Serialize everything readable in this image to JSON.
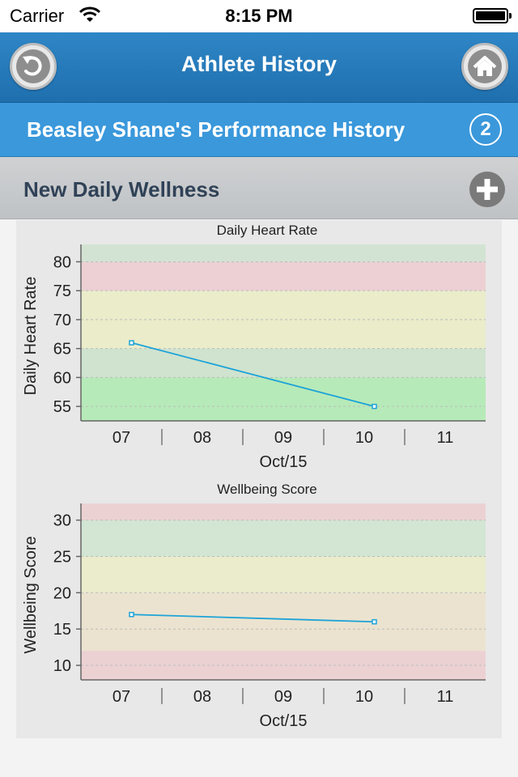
{
  "status_bar": {
    "carrier": "Carrier",
    "time": "8:15 PM"
  },
  "nav": {
    "title": "Athlete History",
    "back_icon": "back-arrow-icon",
    "home_icon": "home-icon"
  },
  "subheader": {
    "title": "Beasley Shane's Performance History",
    "badge": "2"
  },
  "section": {
    "title": "New Daily Wellness",
    "add_icon": "plus-circle-icon"
  },
  "chart_data": [
    {
      "type": "line",
      "title": "Daily Heart Rate",
      "ylabel": "Daily Heart Rate",
      "xlabel": "Oct/15",
      "x_ticks": [
        "07",
        "08",
        "09",
        "10",
        "11"
      ],
      "y_ticks": [
        55,
        60,
        65,
        70,
        75,
        80
      ],
      "ylim": [
        52.5,
        83
      ],
      "grid": true,
      "bands": [
        {
          "from": 52.5,
          "to": 60,
          "color": "#b7eab9"
        },
        {
          "from": 60,
          "to": 65,
          "color": "#cfe3cf"
        },
        {
          "from": 65,
          "to": 75,
          "color": "#eaecca"
        },
        {
          "from": 75,
          "to": 80,
          "color": "#ecd0d3"
        },
        {
          "from": 80,
          "to": 83,
          "color": "#d3e3d3"
        }
      ],
      "series": [
        {
          "color": "#1ca3d8",
          "points": [
            {
              "x": "2015-10-07",
              "y": 66
            },
            {
              "x": "2015-10-10",
              "y": 55
            }
          ]
        }
      ]
    },
    {
      "type": "line",
      "title": "Wellbeing Score",
      "ylabel": "Wellbeing Score",
      "xlabel": "Oct/15",
      "x_ticks": [
        "07",
        "08",
        "09",
        "10",
        "11"
      ],
      "y_ticks": [
        10,
        15,
        20,
        25,
        30
      ],
      "ylim": [
        8,
        32.3
      ],
      "grid": true,
      "bands": [
        {
          "from": 8,
          "to": 12,
          "color": "#ecd1d3"
        },
        {
          "from": 12,
          "to": 20,
          "color": "#ebe3cf"
        },
        {
          "from": 20,
          "to": 25,
          "color": "#eaeccb"
        },
        {
          "from": 25,
          "to": 30,
          "color": "#d3e5d3"
        },
        {
          "from": 30,
          "to": 32.3,
          "color": "#ecd1d3"
        }
      ],
      "series": [
        {
          "color": "#1ca3d8",
          "points": [
            {
              "x": "2015-10-07",
              "y": 17
            },
            {
              "x": "2015-10-10",
              "y": 16
            }
          ]
        }
      ]
    }
  ]
}
